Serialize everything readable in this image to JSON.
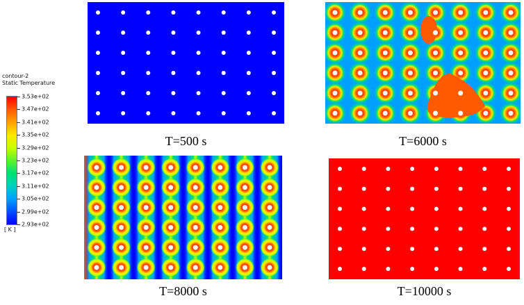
{
  "legend": {
    "name": "contour-2",
    "quantity": "Static Temperature",
    "ticks": [
      "3.53e+02",
      "3.47e+02",
      "3.41e+02",
      "3.35e+02",
      "3.29e+02",
      "3.23e+02",
      "3.17e+02",
      "3.11e+02",
      "3.05e+02",
      "2.99e+02",
      "2.93e+02"
    ],
    "unit": "[ K ]",
    "min_K": 293,
    "max_K": 353,
    "colors": [
      "#0000ff",
      "#00a0ff",
      "#00e070",
      "#c8ff00",
      "#ffe800",
      "#ff5a00",
      "#ff0000"
    ]
  },
  "panels": [
    {
      "caption": "T=500 s",
      "state": "cold"
    },
    {
      "caption": "T=6000 s",
      "state": "partial-melt"
    },
    {
      "caption": "T=8000 s",
      "state": "column-melt"
    },
    {
      "caption": "T=10000 s",
      "state": "hot"
    }
  ],
  "tube_grid": {
    "columns": 8,
    "rows": 6
  }
}
